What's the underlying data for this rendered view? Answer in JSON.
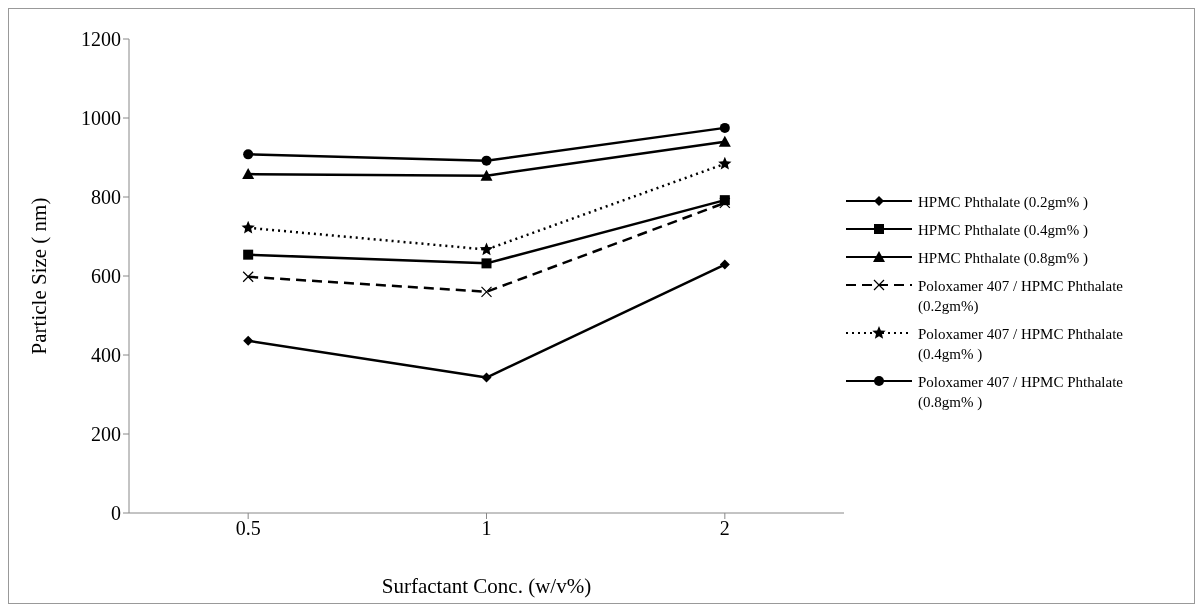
{
  "chart_data": {
    "type": "line",
    "xlabel": "Surfactant Conc. (w/v%)",
    "ylabel": "Particle Size ( nm)",
    "categories": [
      "0.5",
      "1",
      "2"
    ],
    "ylim": [
      0,
      1200
    ],
    "yticks": [
      0,
      200,
      400,
      600,
      800,
      1000,
      1200
    ],
    "grid": false,
    "legend": "right",
    "series": [
      {
        "name": "HPMC Phthalate (0.2gm% )",
        "color": "#000000",
        "marker": "diamond",
        "line_style": "solid",
        "values": [
          436,
          343,
          629
        ]
      },
      {
        "name": "HPMC Phthalate (0.4gm% )",
        "color": "#000000",
        "marker": "square",
        "line_style": "solid",
        "values": [
          654,
          632,
          792
        ]
      },
      {
        "name": "HPMC Phthalate (0.8gm% )",
        "color": "#000000",
        "marker": "triangle",
        "line_style": "solid",
        "values": [
          858,
          854,
          940
        ]
      },
      {
        "name": "Poloxamer 407 / HPMC Phthalate (0.2gm%)",
        "color": "#000000",
        "marker": "cross",
        "line_style": "dashed",
        "values": [
          598,
          560,
          785
        ]
      },
      {
        "name": "Poloxamer 407 / HPMC Phthalate (0.4gm% )",
        "color": "#000000",
        "marker": "star",
        "line_style": "dotted",
        "values": [
          722,
          667,
          884
        ]
      },
      {
        "name": "Poloxamer 407 / HPMC Phthalate (0.8gm% )",
        "color": "#000000",
        "marker": "circle",
        "line_style": "solid",
        "values": [
          908,
          892,
          975
        ]
      }
    ]
  }
}
